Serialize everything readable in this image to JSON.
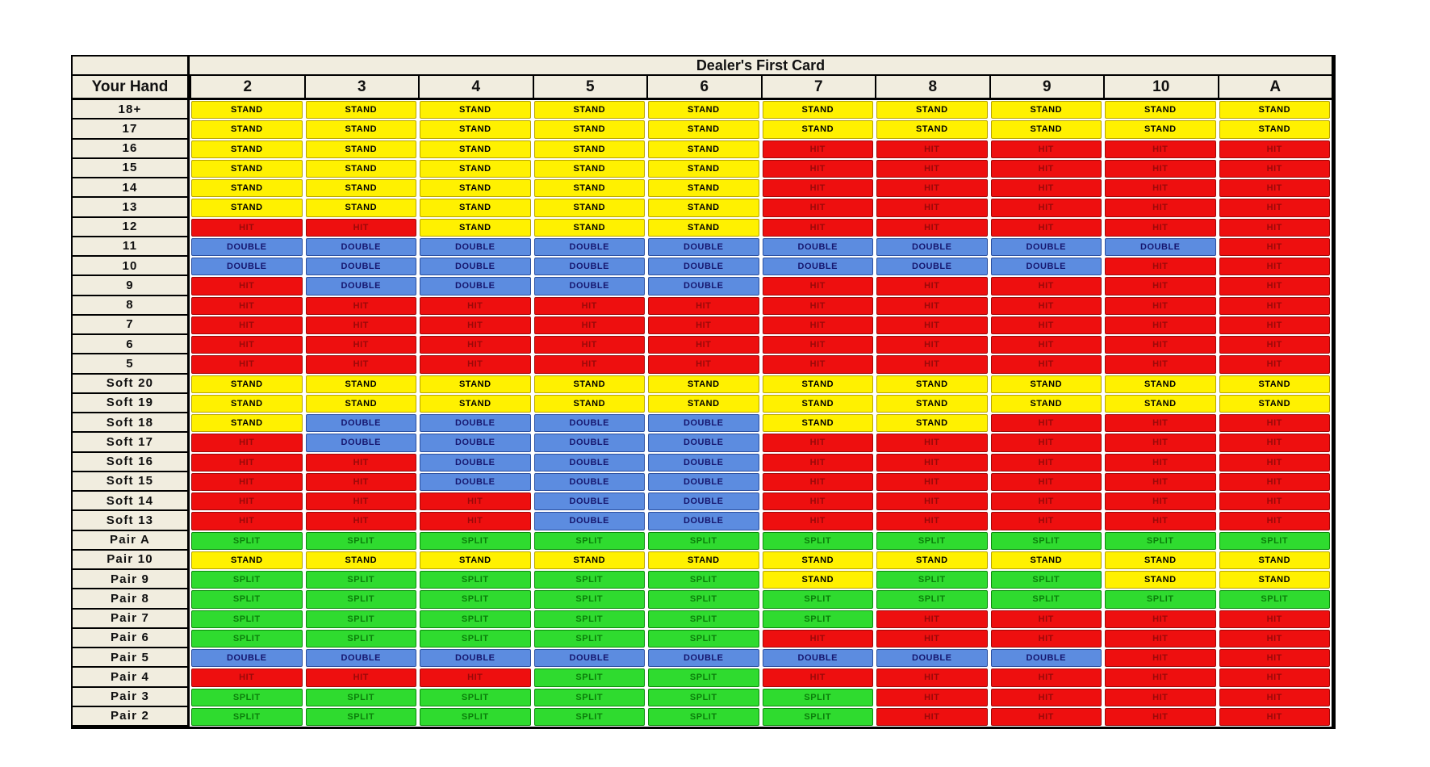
{
  "chart_data": {
    "type": "table",
    "title": "Dealer's First Card",
    "corner_label": "Your Hand",
    "columns": [
      "2",
      "3",
      "4",
      "5",
      "6",
      "7",
      "8",
      "9",
      "10",
      "A"
    ],
    "actions": [
      "STAND",
      "HIT",
      "DOUBLE",
      "SPLIT"
    ],
    "action_colors": {
      "STAND": {
        "bg": "#FFF100",
        "fg": "#000000",
        "border": "#B8A400"
      },
      "HIT": {
        "bg": "#EE0F0F",
        "fg": "#9A0909",
        "border": "#A00808"
      },
      "DOUBLE": {
        "bg": "#5C8CE0",
        "fg": "#16166E",
        "border": "#2B4FA0"
      },
      "SPLIT": {
        "bg": "#2FDB2F",
        "fg": "#0B7E0B",
        "border": "#0B8A0B"
      }
    },
    "rows": [
      {
        "label": "18+",
        "actions": [
          "STAND",
          "STAND",
          "STAND",
          "STAND",
          "STAND",
          "STAND",
          "STAND",
          "STAND",
          "STAND",
          "STAND"
        ]
      },
      {
        "label": "17",
        "actions": [
          "STAND",
          "STAND",
          "STAND",
          "STAND",
          "STAND",
          "STAND",
          "STAND",
          "STAND",
          "STAND",
          "STAND"
        ]
      },
      {
        "label": "16",
        "actions": [
          "STAND",
          "STAND",
          "STAND",
          "STAND",
          "STAND",
          "HIT",
          "HIT",
          "HIT",
          "HIT",
          "HIT"
        ]
      },
      {
        "label": "15",
        "actions": [
          "STAND",
          "STAND",
          "STAND",
          "STAND",
          "STAND",
          "HIT",
          "HIT",
          "HIT",
          "HIT",
          "HIT"
        ]
      },
      {
        "label": "14",
        "actions": [
          "STAND",
          "STAND",
          "STAND",
          "STAND",
          "STAND",
          "HIT",
          "HIT",
          "HIT",
          "HIT",
          "HIT"
        ]
      },
      {
        "label": "13",
        "actions": [
          "STAND",
          "STAND",
          "STAND",
          "STAND",
          "STAND",
          "HIT",
          "HIT",
          "HIT",
          "HIT",
          "HIT"
        ]
      },
      {
        "label": "12",
        "actions": [
          "HIT",
          "HIT",
          "STAND",
          "STAND",
          "STAND",
          "HIT",
          "HIT",
          "HIT",
          "HIT",
          "HIT"
        ]
      },
      {
        "label": "11",
        "actions": [
          "DOUBLE",
          "DOUBLE",
          "DOUBLE",
          "DOUBLE",
          "DOUBLE",
          "DOUBLE",
          "DOUBLE",
          "DOUBLE",
          "DOUBLE",
          "HIT"
        ]
      },
      {
        "label": "10",
        "actions": [
          "DOUBLE",
          "DOUBLE",
          "DOUBLE",
          "DOUBLE",
          "DOUBLE",
          "DOUBLE",
          "DOUBLE",
          "DOUBLE",
          "HIT",
          "HIT"
        ]
      },
      {
        "label": "9",
        "actions": [
          "HIT",
          "DOUBLE",
          "DOUBLE",
          "DOUBLE",
          "DOUBLE",
          "HIT",
          "HIT",
          "HIT",
          "HIT",
          "HIT"
        ]
      },
      {
        "label": "8",
        "actions": [
          "HIT",
          "HIT",
          "HIT",
          "HIT",
          "HIT",
          "HIT",
          "HIT",
          "HIT",
          "HIT",
          "HIT"
        ]
      },
      {
        "label": "7",
        "actions": [
          "HIT",
          "HIT",
          "HIT",
          "HIT",
          "HIT",
          "HIT",
          "HIT",
          "HIT",
          "HIT",
          "HIT"
        ]
      },
      {
        "label": "6",
        "actions": [
          "HIT",
          "HIT",
          "HIT",
          "HIT",
          "HIT",
          "HIT",
          "HIT",
          "HIT",
          "HIT",
          "HIT"
        ]
      },
      {
        "label": "5",
        "actions": [
          "HIT",
          "HIT",
          "HIT",
          "HIT",
          "HIT",
          "HIT",
          "HIT",
          "HIT",
          "HIT",
          "HIT"
        ]
      },
      {
        "label": "Soft 20",
        "actions": [
          "STAND",
          "STAND",
          "STAND",
          "STAND",
          "STAND",
          "STAND",
          "STAND",
          "STAND",
          "STAND",
          "STAND"
        ]
      },
      {
        "label": "Soft 19",
        "actions": [
          "STAND",
          "STAND",
          "STAND",
          "STAND",
          "STAND",
          "STAND",
          "STAND",
          "STAND",
          "STAND",
          "STAND"
        ]
      },
      {
        "label": "Soft 18",
        "actions": [
          "STAND",
          "DOUBLE",
          "DOUBLE",
          "DOUBLE",
          "DOUBLE",
          "STAND",
          "STAND",
          "HIT",
          "HIT",
          "HIT"
        ]
      },
      {
        "label": "Soft 17",
        "actions": [
          "HIT",
          "DOUBLE",
          "DOUBLE",
          "DOUBLE",
          "DOUBLE",
          "HIT",
          "HIT",
          "HIT",
          "HIT",
          "HIT"
        ]
      },
      {
        "label": "Soft 16",
        "actions": [
          "HIT",
          "HIT",
          "DOUBLE",
          "DOUBLE",
          "DOUBLE",
          "HIT",
          "HIT",
          "HIT",
          "HIT",
          "HIT"
        ]
      },
      {
        "label": "Soft 15",
        "actions": [
          "HIT",
          "HIT",
          "DOUBLE",
          "DOUBLE",
          "DOUBLE",
          "HIT",
          "HIT",
          "HIT",
          "HIT",
          "HIT"
        ]
      },
      {
        "label": "Soft 14",
        "actions": [
          "HIT",
          "HIT",
          "HIT",
          "DOUBLE",
          "DOUBLE",
          "HIT",
          "HIT",
          "HIT",
          "HIT",
          "HIT"
        ]
      },
      {
        "label": "Soft 13",
        "actions": [
          "HIT",
          "HIT",
          "HIT",
          "DOUBLE",
          "DOUBLE",
          "HIT",
          "HIT",
          "HIT",
          "HIT",
          "HIT"
        ]
      },
      {
        "label": "Pair A",
        "actions": [
          "SPLIT",
          "SPLIT",
          "SPLIT",
          "SPLIT",
          "SPLIT",
          "SPLIT",
          "SPLIT",
          "SPLIT",
          "SPLIT",
          "SPLIT"
        ]
      },
      {
        "label": "Pair 10",
        "actions": [
          "STAND",
          "STAND",
          "STAND",
          "STAND",
          "STAND",
          "STAND",
          "STAND",
          "STAND",
          "STAND",
          "STAND"
        ]
      },
      {
        "label": "Pair 9",
        "actions": [
          "SPLIT",
          "SPLIT",
          "SPLIT",
          "SPLIT",
          "SPLIT",
          "STAND",
          "SPLIT",
          "SPLIT",
          "STAND",
          "STAND"
        ]
      },
      {
        "label": "Pair 8",
        "actions": [
          "SPLIT",
          "SPLIT",
          "SPLIT",
          "SPLIT",
          "SPLIT",
          "SPLIT",
          "SPLIT",
          "SPLIT",
          "SPLIT",
          "SPLIT"
        ]
      },
      {
        "label": "Pair 7",
        "actions": [
          "SPLIT",
          "SPLIT",
          "SPLIT",
          "SPLIT",
          "SPLIT",
          "SPLIT",
          "HIT",
          "HIT",
          "HIT",
          "HIT"
        ]
      },
      {
        "label": "Pair 6",
        "actions": [
          "SPLIT",
          "SPLIT",
          "SPLIT",
          "SPLIT",
          "SPLIT",
          "HIT",
          "HIT",
          "HIT",
          "HIT",
          "HIT"
        ]
      },
      {
        "label": "Pair 5",
        "actions": [
          "DOUBLE",
          "DOUBLE",
          "DOUBLE",
          "DOUBLE",
          "DOUBLE",
          "DOUBLE",
          "DOUBLE",
          "DOUBLE",
          "HIT",
          "HIT"
        ]
      },
      {
        "label": "Pair 4",
        "actions": [
          "HIT",
          "HIT",
          "HIT",
          "SPLIT",
          "SPLIT",
          "HIT",
          "HIT",
          "HIT",
          "HIT",
          "HIT"
        ]
      },
      {
        "label": "Pair 3",
        "actions": [
          "SPLIT",
          "SPLIT",
          "SPLIT",
          "SPLIT",
          "SPLIT",
          "SPLIT",
          "HIT",
          "HIT",
          "HIT",
          "HIT"
        ]
      },
      {
        "label": "Pair 2",
        "actions": [
          "SPLIT",
          "SPLIT",
          "SPLIT",
          "SPLIT",
          "SPLIT",
          "SPLIT",
          "HIT",
          "HIT",
          "HIT",
          "HIT"
        ]
      }
    ]
  }
}
